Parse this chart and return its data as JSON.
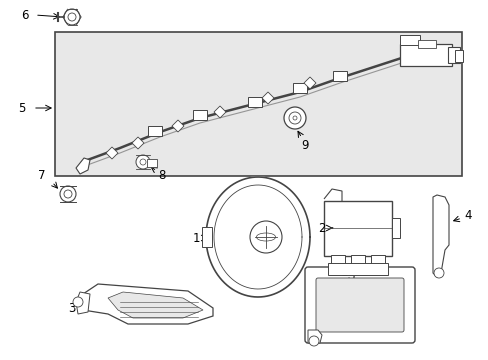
{
  "bg_color": "#ffffff",
  "box_fill": "#e8e8e8",
  "line_color": "#444444",
  "figsize": [
    4.89,
    3.6
  ],
  "dpi": 100
}
